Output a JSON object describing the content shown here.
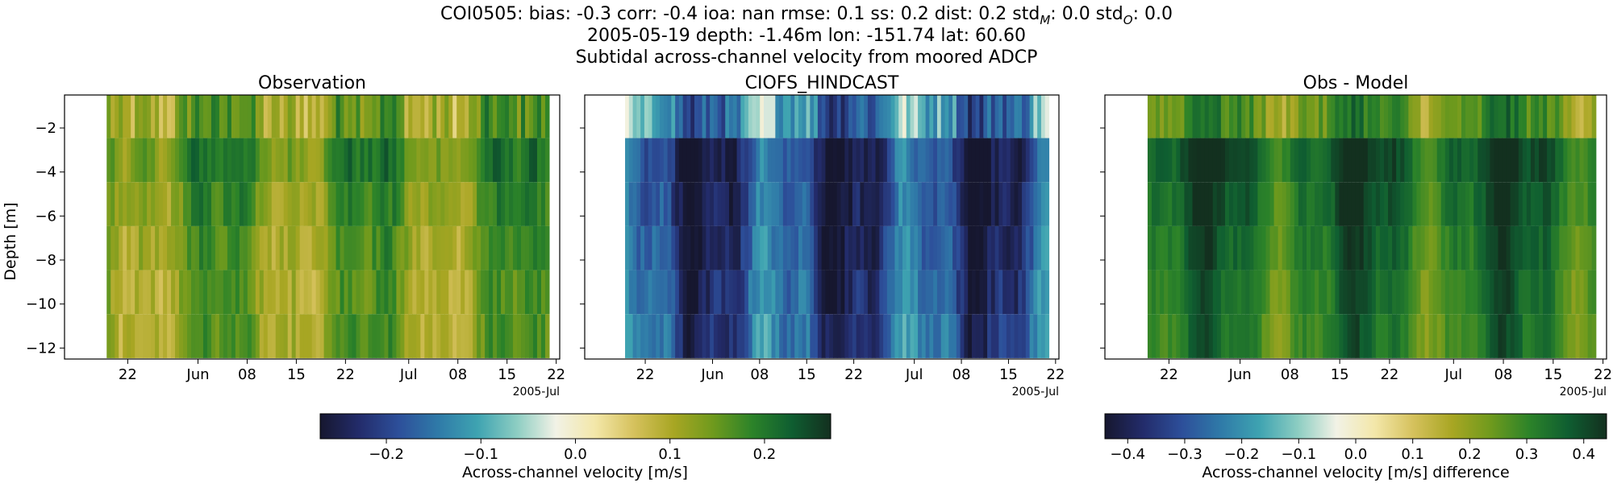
{
  "header": {
    "line1": "COI0505: bias: -0.3  corr: -0.4  ioa: nan  rmse: 0.1  ss: 0.2  dist: 0.2  std",
    "stdM_sub": "M",
    "stdM_val": ": 0.0  std",
    "stdO_sub": "O",
    "stdO_val": ": 0.0",
    "line2": "2005-05-19 depth: -1.46m lon: -151.74 lat: 60.60",
    "line3": "Subtidal across-channel velocity from moored ADCP"
  },
  "colors": {
    "cmap_velocity": [
      "#16172f",
      "#232c6b",
      "#2d4f9a",
      "#2f7aa8",
      "#3ea3b1",
      "#8ccdc2",
      "#f2f2e6",
      "#f3e7a9",
      "#d5c15c",
      "#a8a623",
      "#6f9a1d",
      "#2c8329",
      "#0f5e31",
      "#13301f"
    ],
    "cmap_difference": [
      "#16172f",
      "#232c6b",
      "#2d4f9a",
      "#2f7aa8",
      "#3ea3b1",
      "#8ccdc2",
      "#f2f2e6",
      "#f3e7a9",
      "#d5c15c",
      "#a8a623",
      "#6f9a1d",
      "#2c8329",
      "#0f5e31",
      "#13301f"
    ]
  },
  "chart_data": [
    {
      "type": "heatmap",
      "title": "Observation",
      "ylabel": "Depth [m]",
      "xlabel": "",
      "xlim": [
        "2005-05-19",
        "2005-07-21"
      ],
      "ylim": [
        -12.5,
        -0.5
      ],
      "x_tick_labels": [
        "22",
        "Jun",
        "08",
        "15",
        "22",
        "Jul",
        "08",
        "15",
        "22"
      ],
      "x_tick_dates": [
        "2005-05-22",
        "2005-06-01",
        "2005-06-08",
        "2005-06-15",
        "2005-06-22",
        "2005-07-01",
        "2005-07-08",
        "2005-07-15",
        "2005-07-22"
      ],
      "x_offset_label": "2005-Jul",
      "y_ticks": [
        -2,
        -4,
        -6,
        -8,
        -10,
        -12
      ],
      "depth_bins": [
        -1.46,
        -3.46,
        -5.46,
        -7.46,
        -9.46,
        -11.46
      ],
      "colorbar": "velocity",
      "value_mean_by_depth": [
        0.13,
        0.17,
        0.15,
        0.14,
        0.13,
        0.13
      ]
    },
    {
      "type": "heatmap",
      "title": "CIOFS_HINDCAST",
      "xlabel": "",
      "xlim": [
        "2005-05-19",
        "2005-07-21"
      ],
      "ylim": [
        -12.5,
        -0.5
      ],
      "x_tick_labels": [
        "22",
        "Jun",
        "08",
        "15",
        "22",
        "Jul",
        "08",
        "15",
        "22"
      ],
      "x_tick_dates": [
        "2005-05-22",
        "2005-06-01",
        "2005-06-08",
        "2005-06-15",
        "2005-06-22",
        "2005-07-01",
        "2005-07-08",
        "2005-07-15",
        "2005-07-22"
      ],
      "x_offset_label": "2005-Jul",
      "y_ticks": [
        -2,
        -4,
        -6,
        -8,
        -10,
        -12
      ],
      "depth_bins": [
        -1.46,
        -3.46,
        -5.46,
        -7.46,
        -9.46,
        -11.46
      ],
      "colorbar": "velocity",
      "value_mean_by_depth": [
        -0.13,
        -0.21,
        -0.21,
        -0.2,
        -0.19,
        -0.18
      ]
    },
    {
      "type": "heatmap",
      "title": "Obs - Model",
      "xlabel": "",
      "xlim": [
        "2005-05-19",
        "2005-07-21"
      ],
      "ylim": [
        -12.5,
        -0.5
      ],
      "x_tick_labels": [
        "22",
        "Jun",
        "08",
        "15",
        "22",
        "Jul",
        "08",
        "15",
        "22"
      ],
      "x_tick_dates": [
        "2005-05-22",
        "2005-06-01",
        "2005-06-08",
        "2005-06-15",
        "2005-06-22",
        "2005-07-01",
        "2005-07-08",
        "2005-07-15",
        "2005-07-22"
      ],
      "x_offset_label": "2005-Jul",
      "y_ticks": [
        -2,
        -4,
        -6,
        -8,
        -10,
        -12
      ],
      "depth_bins": [
        -1.46,
        -3.46,
        -5.46,
        -7.46,
        -9.46,
        -11.46
      ],
      "colorbar": "difference",
      "value_mean_by_depth": [
        0.26,
        0.38,
        0.36,
        0.34,
        0.32,
        0.31
      ]
    }
  ],
  "colorbars": {
    "velocity": {
      "label": "Across-channel velocity [m/s]",
      "range": [
        -0.27,
        0.27
      ],
      "ticks": [
        -0.2,
        -0.1,
        0.0,
        0.1,
        0.2
      ],
      "tick_labels": [
        "−0.2",
        "−0.1",
        "0.0",
        "0.1",
        "0.2"
      ]
    },
    "difference": {
      "label": "Across-channel velocity [m/s] difference",
      "range": [
        -0.44,
        0.44
      ],
      "ticks": [
        -0.4,
        -0.3,
        -0.2,
        -0.1,
        0.0,
        0.1,
        0.2,
        0.3,
        0.4
      ],
      "tick_labels": [
        "−0.4",
        "−0.3",
        "−0.2",
        "−0.1",
        "0.0",
        "0.1",
        "0.2",
        "0.3",
        "0.4"
      ]
    }
  },
  "y_tick_labels": [
    "−2",
    "−4",
    "−6",
    "−8",
    "−10",
    "−12"
  ]
}
